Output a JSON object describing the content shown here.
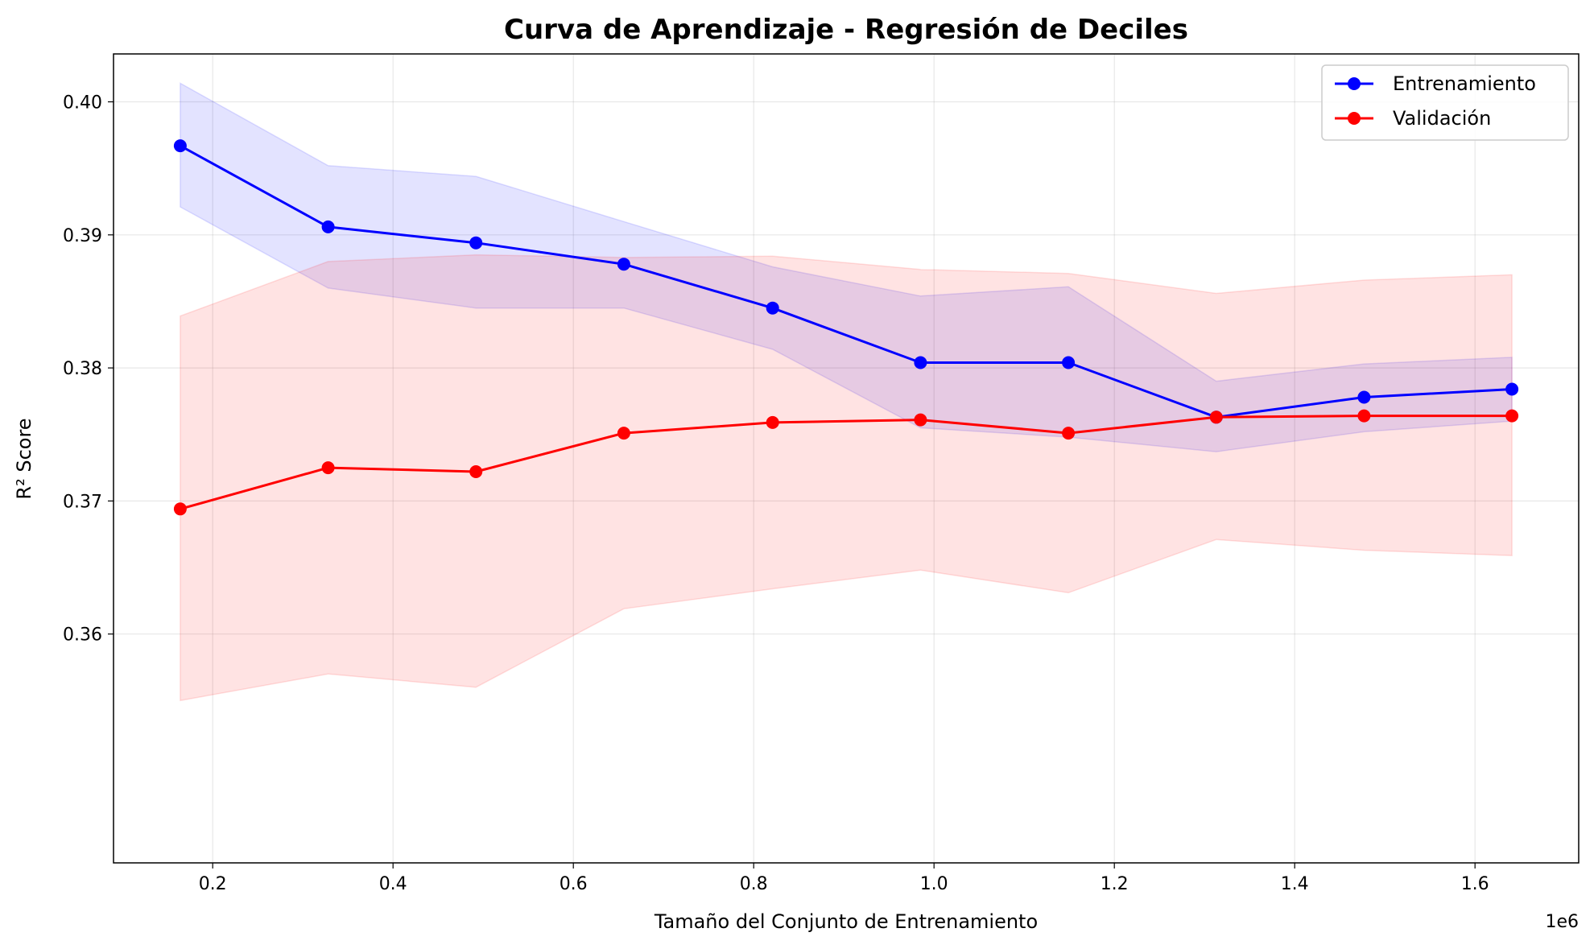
{
  "chart_data": {
    "type": "line",
    "title": "Curva de Aprendizaje - Regresión de Deciles",
    "xlabel": "Tamaño del Conjunto de Entrenamiento",
    "ylabel": "R² Score",
    "x_offset_label": "1e6",
    "x_scale": 1000000,
    "xlim": [
      0.09,
      1.715
    ],
    "ylim": [
      0.3428,
      0.4036
    ],
    "x_ticks": [
      0.2,
      0.4,
      0.6,
      0.8,
      1.0,
      1.2,
      1.4,
      1.6
    ],
    "x_tick_labels": [
      "0.2",
      "0.4",
      "0.6",
      "0.8",
      "1.0",
      "1.2",
      "1.4",
      "1.6"
    ],
    "y_ticks": [
      0.36,
      0.37,
      0.38,
      0.39,
      0.4
    ],
    "y_tick_labels": [
      "0.36",
      "0.37",
      "0.38",
      "0.39",
      "0.40"
    ],
    "grid": true,
    "legend_position": "top-right",
    "x": [
      164000,
      328000,
      492000,
      656000,
      821000,
      985000,
      1149000,
      1313000,
      1477000,
      1641000
    ],
    "series": [
      {
        "name": "Entrenamiento",
        "color": "#0000ff",
        "band_color": "#0000ff",
        "values": [
          0.3967,
          0.3906,
          0.3894,
          0.3878,
          0.3845,
          0.3804,
          0.3804,
          0.3763,
          0.3778,
          0.3784
        ],
        "band_lower": [
          0.3921,
          0.386,
          0.3845,
          0.3845,
          0.3814,
          0.3755,
          0.3748,
          0.3737,
          0.3752,
          0.376
        ],
        "band_upper": [
          0.4014,
          0.3952,
          0.3944,
          0.391,
          0.3876,
          0.3854,
          0.3861,
          0.379,
          0.3803,
          0.3808
        ]
      },
      {
        "name": "Validación",
        "color": "#ff0000",
        "band_color": "#ff0000",
        "values": [
          0.3694,
          0.3725,
          0.3722,
          0.3751,
          0.3759,
          0.3761,
          0.3751,
          0.3763,
          0.3764,
          0.3764
        ],
        "band_lower": [
          0.355,
          0.357,
          0.356,
          0.3619,
          0.3634,
          0.3648,
          0.3631,
          0.3671,
          0.3663,
          0.3659
        ],
        "band_upper": [
          0.3839,
          0.388,
          0.3885,
          0.3883,
          0.3884,
          0.3874,
          0.3871,
          0.3856,
          0.3866,
          0.387
        ]
      }
    ]
  }
}
